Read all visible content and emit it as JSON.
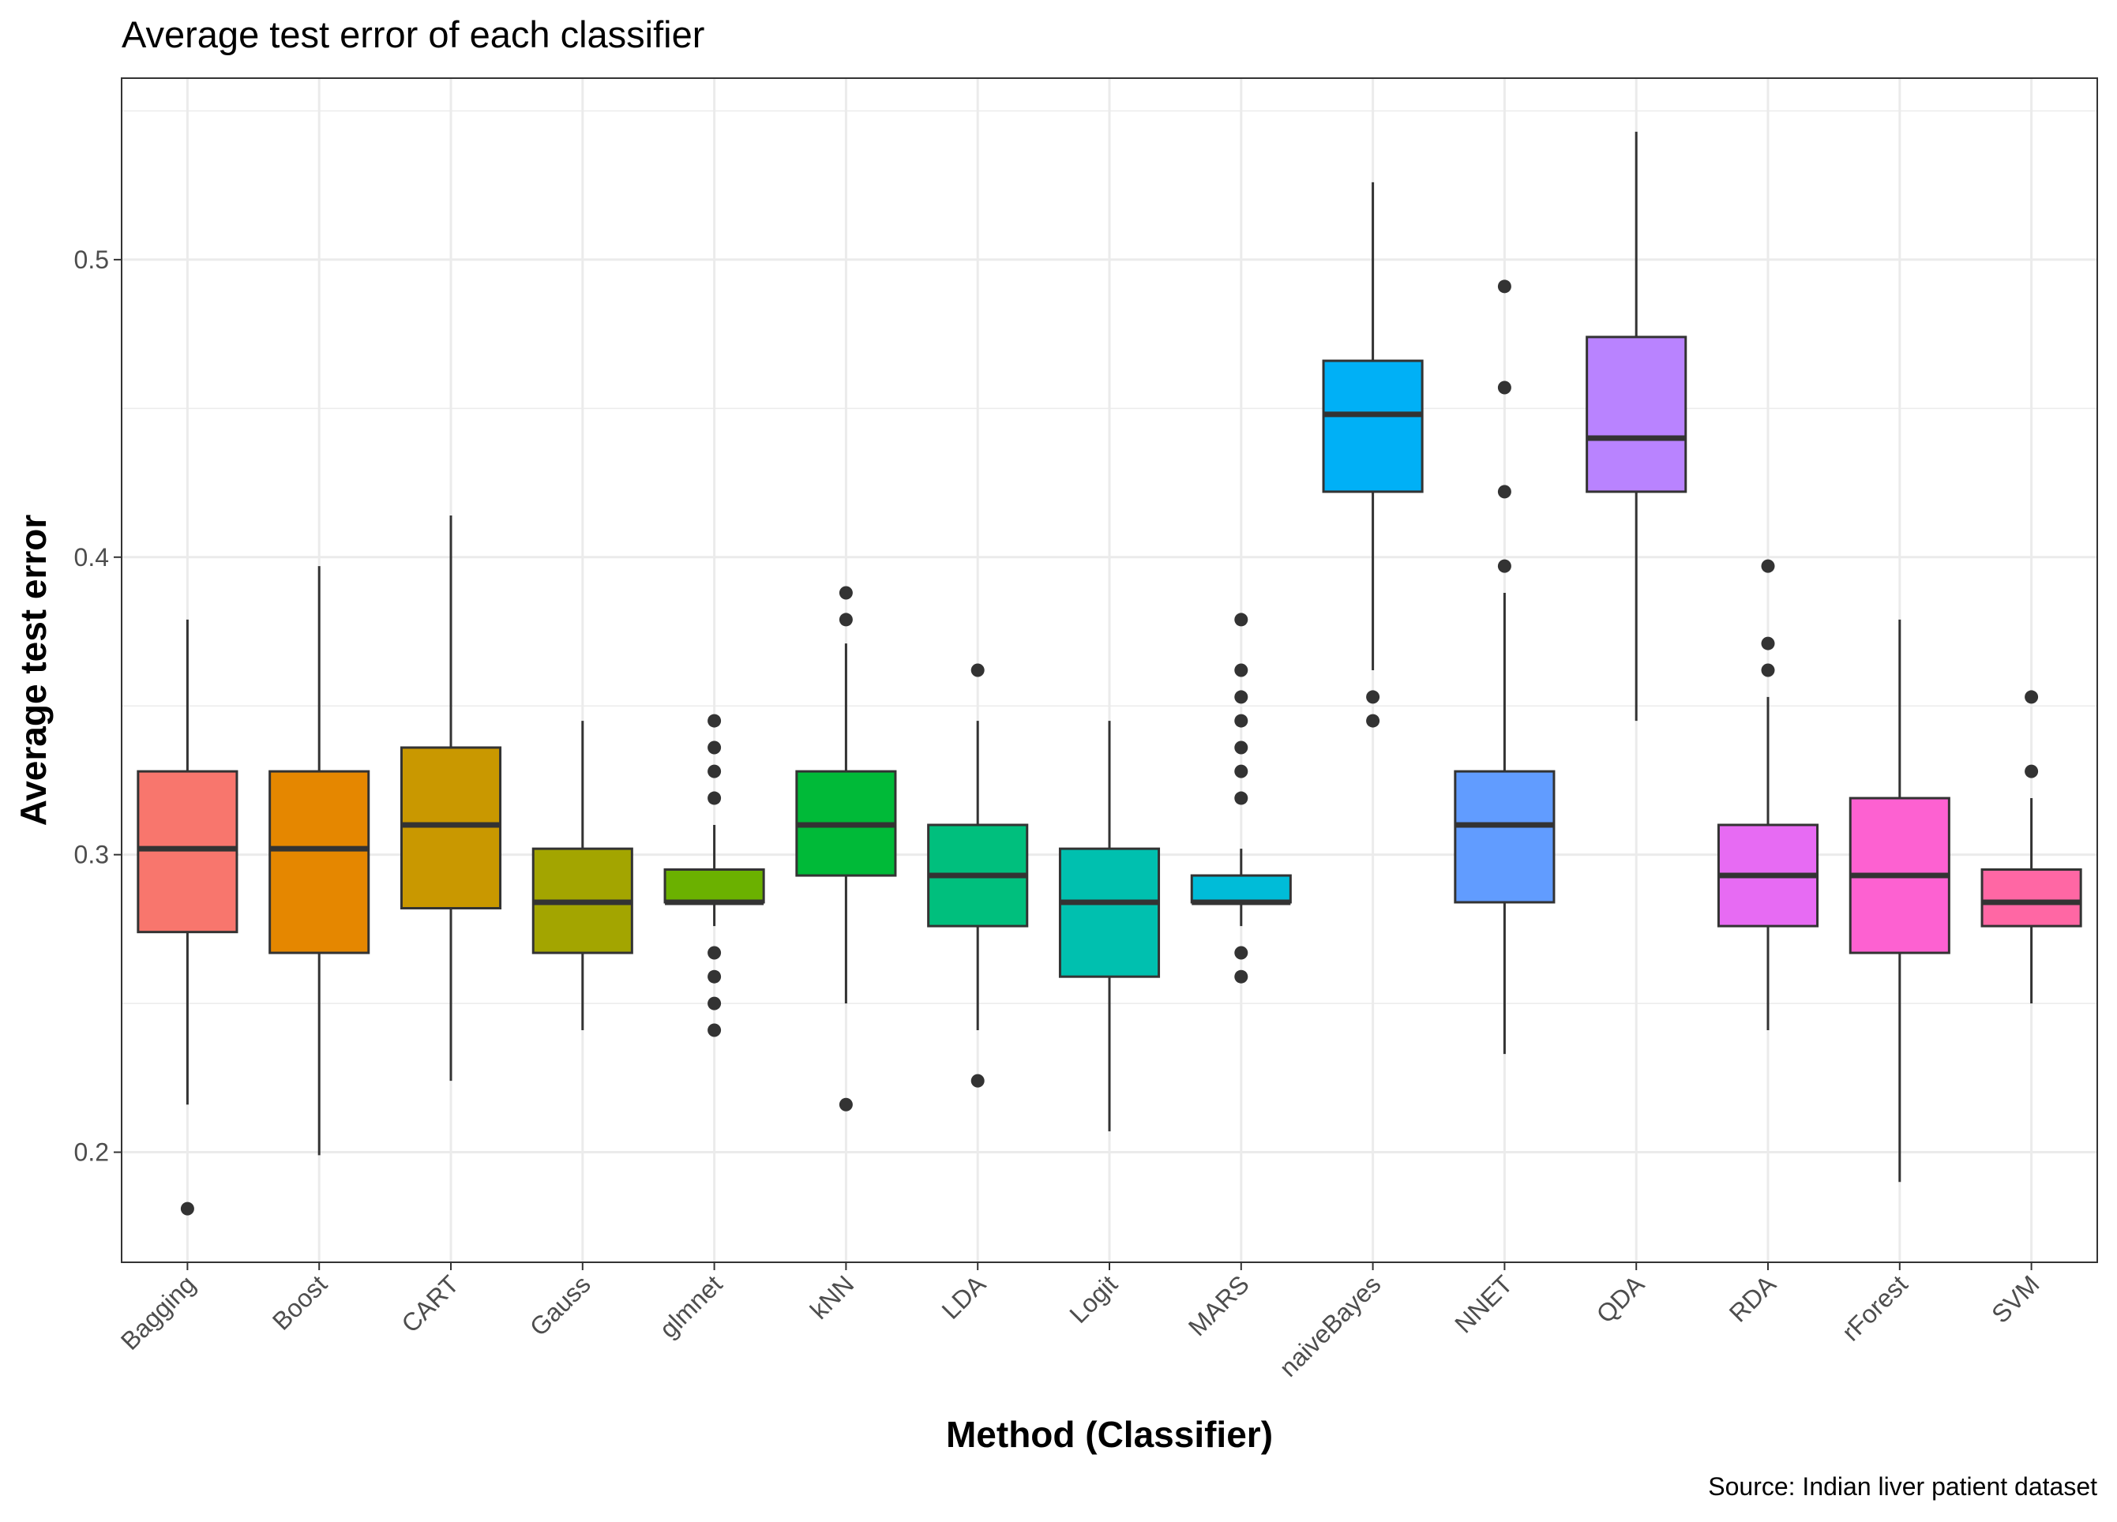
{
  "chart_data": {
    "type": "boxplot",
    "title": "Average test error of each classifier",
    "xlabel": "Method (Classifier)",
    "ylabel": "Average test error",
    "caption": "Source: Indian liver patient dataset",
    "ylim": [
      0.163,
      0.561
    ],
    "yticks": [
      0.2,
      0.3,
      0.4,
      0.5
    ],
    "ytick_labels": [
      "0.2",
      "0.3",
      "0.4",
      "0.5"
    ],
    "grid": true,
    "legend": "none",
    "box_outline_color": "#333333",
    "panel_border_color": "#333333",
    "grid_color": "#ebebeb",
    "categories": [
      "Bagging",
      "Boost",
      "CART",
      "Gauss",
      "glmnet",
      "kNN",
      "LDA",
      "Logit",
      "MARS",
      "naiveBayes",
      "NNET",
      "QDA",
      "RDA",
      "rForest",
      "SVM"
    ],
    "boxes": [
      {
        "name": "Bagging",
        "color": "#F8766D",
        "whisker_low": 0.216,
        "q1": 0.274,
        "median": 0.302,
        "q3": 0.328,
        "whisker_high": 0.379,
        "outliers": [
          0.181
        ]
      },
      {
        "name": "Boost",
        "color": "#E58700",
        "whisker_low": 0.199,
        "q1": 0.267,
        "median": 0.302,
        "q3": 0.328,
        "whisker_high": 0.397,
        "outliers": []
      },
      {
        "name": "CART",
        "color": "#C99800",
        "whisker_low": 0.224,
        "q1": 0.282,
        "median": 0.31,
        "q3": 0.336,
        "whisker_high": 0.414,
        "outliers": []
      },
      {
        "name": "Gauss",
        "color": "#A3A500",
        "whisker_low": 0.241,
        "q1": 0.267,
        "median": 0.284,
        "q3": 0.302,
        "whisker_high": 0.345,
        "outliers": []
      },
      {
        "name": "glmnet",
        "color": "#6BB100",
        "whisker_low": 0.276,
        "q1": 0.284,
        "median": 0.284,
        "q3": 0.295,
        "whisker_high": 0.31,
        "outliers": [
          0.241,
          0.25,
          0.259,
          0.267,
          0.319,
          0.328,
          0.336,
          0.345
        ]
      },
      {
        "name": "kNN",
        "color": "#00BA38",
        "whisker_low": 0.25,
        "q1": 0.293,
        "median": 0.31,
        "q3": 0.328,
        "whisker_high": 0.371,
        "outliers": [
          0.216,
          0.379,
          0.388
        ]
      },
      {
        "name": "LDA",
        "color": "#00BF7D",
        "whisker_low": 0.241,
        "q1": 0.276,
        "median": 0.293,
        "q3": 0.31,
        "whisker_high": 0.345,
        "outliers": [
          0.224,
          0.362
        ]
      },
      {
        "name": "Logit",
        "color": "#00C0AF",
        "whisker_low": 0.207,
        "q1": 0.259,
        "median": 0.284,
        "q3": 0.302,
        "whisker_high": 0.345,
        "outliers": []
      },
      {
        "name": "MARS",
        "color": "#00BCD8",
        "whisker_low": 0.276,
        "q1": 0.284,
        "median": 0.284,
        "q3": 0.293,
        "whisker_high": 0.302,
        "outliers": [
          0.259,
          0.267,
          0.319,
          0.328,
          0.336,
          0.345,
          0.353,
          0.362,
          0.379
        ]
      },
      {
        "name": "naiveBayes",
        "color": "#00B0F6",
        "whisker_low": 0.362,
        "q1": 0.422,
        "median": 0.448,
        "q3": 0.466,
        "whisker_high": 0.526,
        "outliers": [
          0.345,
          0.353
        ]
      },
      {
        "name": "NNET",
        "color": "#619CFF",
        "whisker_low": 0.233,
        "q1": 0.284,
        "median": 0.31,
        "q3": 0.328,
        "whisker_high": 0.388,
        "outliers": [
          0.397,
          0.422,
          0.457,
          0.491
        ]
      },
      {
        "name": "QDA",
        "color": "#B983FF",
        "whisker_low": 0.345,
        "q1": 0.422,
        "median": 0.44,
        "q3": 0.474,
        "whisker_high": 0.543,
        "outliers": []
      },
      {
        "name": "RDA",
        "color": "#E76BF3",
        "whisker_low": 0.241,
        "q1": 0.276,
        "median": 0.293,
        "q3": 0.31,
        "whisker_high": 0.353,
        "outliers": [
          0.362,
          0.371,
          0.397
        ]
      },
      {
        "name": "rForest",
        "color": "#FD61D1",
        "whisker_low": 0.19,
        "q1": 0.267,
        "median": 0.293,
        "q3": 0.319,
        "whisker_high": 0.379,
        "outliers": []
      },
      {
        "name": "SVM",
        "color": "#FF67A4",
        "whisker_low": 0.25,
        "q1": 0.276,
        "median": 0.284,
        "q3": 0.295,
        "whisker_high": 0.319,
        "outliers": [
          0.328,
          0.353
        ]
      }
    ]
  }
}
